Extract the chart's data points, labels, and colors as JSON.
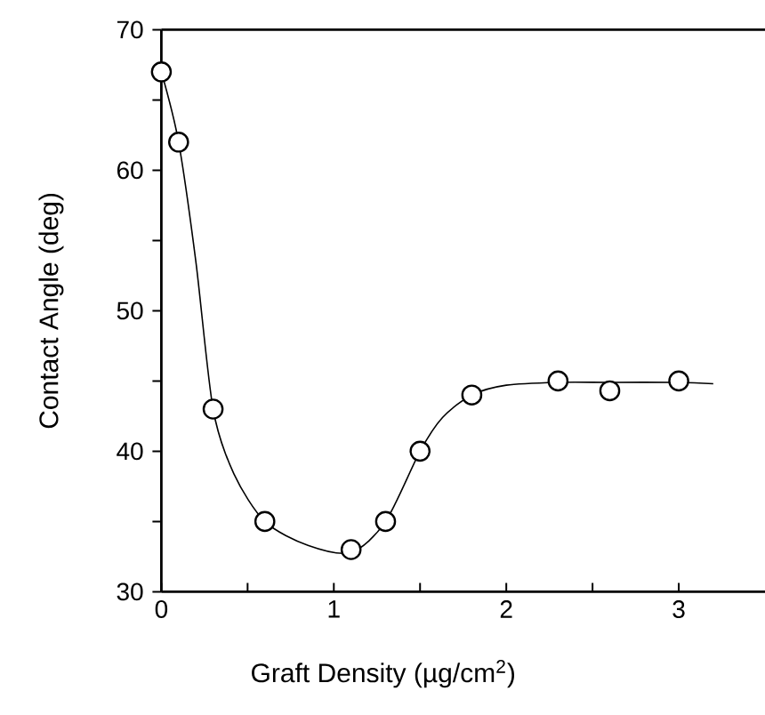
{
  "chart_data": {
    "type": "scatter",
    "xlabel": "Graft Density (µg/cm$^{2}$)",
    "ylabel": "Contact Angle (deg)",
    "xlim": [
      0,
      3.5
    ],
    "ylim": [
      30,
      70
    ],
    "xticks": [
      0,
      {
        "value": 0.5,
        "label": null
      },
      1,
      {
        "value": 1.5,
        "label": null
      },
      2,
      {
        "value": 2.5,
        "label": null
      },
      3
    ],
    "yticks": [
      30,
      {
        "value": 35,
        "label": null
      },
      40,
      {
        "value": 45,
        "label": null
      },
      50,
      {
        "value": 55,
        "label": null
      },
      60,
      {
        "value": 65,
        "label": null
      },
      70
    ],
    "marker": "circle",
    "series": [
      {
        "type": "line",
        "color": "#000000",
        "marker": "none",
        "x": [
          0,
          0.1,
          0.2,
          0.3,
          0.42,
          0.6,
          0.85,
          1.1,
          1.3,
          1.5,
          1.63,
          1.8,
          2.0,
          2.3,
          2.6,
          3.0,
          3.2
        ],
        "values": [
          67,
          62,
          53.5,
          43,
          38.4,
          35,
          33.3,
          32.8,
          35,
          40,
          42.4,
          44,
          44.7,
          44.9,
          44.9,
          44.9,
          44.8
        ]
      },
      {
        "color": "#000000",
        "x": [
          0,
          0.1,
          0.3,
          0.6,
          1.1,
          1.3,
          1.5,
          1.8,
          2.3,
          2.6,
          3.0
        ],
        "values": [
          67,
          62,
          43,
          35,
          33,
          35,
          40,
          44,
          45,
          44.3,
          45
        ]
      }
    ]
  }
}
